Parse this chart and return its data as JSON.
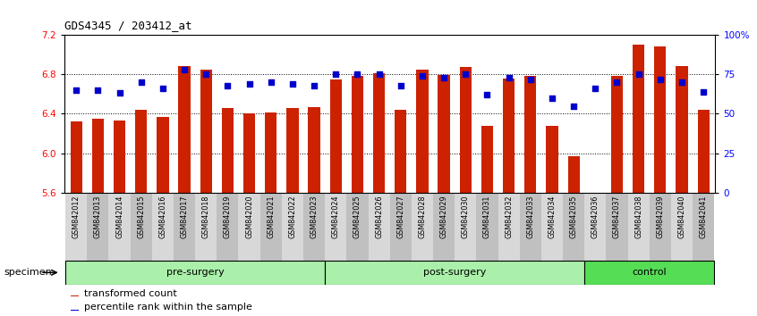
{
  "title": "GDS4345 / 203412_at",
  "samples": [
    "GSM842012",
    "GSM842013",
    "GSM842014",
    "GSM842015",
    "GSM842016",
    "GSM842017",
    "GSM842018",
    "GSM842019",
    "GSM842020",
    "GSM842021",
    "GSM842022",
    "GSM842023",
    "GSM842024",
    "GSM842025",
    "GSM842026",
    "GSM842027",
    "GSM842028",
    "GSM842029",
    "GSM842030",
    "GSM842031",
    "GSM842032",
    "GSM842033",
    "GSM842034",
    "GSM842035",
    "GSM842036",
    "GSM842037",
    "GSM842038",
    "GSM842039",
    "GSM842040",
    "GSM842041"
  ],
  "bar_values": [
    6.32,
    6.35,
    6.33,
    6.44,
    6.37,
    6.88,
    6.85,
    6.46,
    6.4,
    6.41,
    6.46,
    6.47,
    6.75,
    6.78,
    6.81,
    6.44,
    6.85,
    6.79,
    6.87,
    6.28,
    6.76,
    6.78,
    6.28,
    5.97,
    5.57,
    6.78,
    7.1,
    7.08,
    6.88,
    6.44
  ],
  "dot_pct": [
    65,
    65,
    63,
    70,
    66,
    78,
    75,
    68,
    69,
    70,
    69,
    68,
    75,
    75,
    75,
    68,
    74,
    73,
    75,
    62,
    73,
    72,
    60,
    55,
    66,
    70,
    75,
    72,
    70,
    64
  ],
  "groups": [
    {
      "label": "pre-surgery",
      "start": 0,
      "end": 12,
      "color": "#aaf0aa"
    },
    {
      "label": "post-surgery",
      "start": 12,
      "end": 24,
      "color": "#aaf0aa"
    },
    {
      "label": "control",
      "start": 24,
      "end": 30,
      "color": "#55dd55"
    }
  ],
  "ymin": 5.6,
  "ymax": 7.2,
  "yticks_left": [
    5.6,
    6.0,
    6.4,
    6.8,
    7.2
  ],
  "yticks_right_vals": [
    0,
    25,
    50,
    75,
    100
  ],
  "yticks_right_labels": [
    "0",
    "25",
    "50",
    "75",
    "100%"
  ],
  "bar_color": "#CC2200",
  "dot_color": "#0000CC",
  "legend_items": [
    "transformed count",
    "percentile rank within the sample"
  ],
  "specimen_label": "specimen",
  "col_even": "#D8D8D8",
  "col_odd": "#C0C0C0"
}
